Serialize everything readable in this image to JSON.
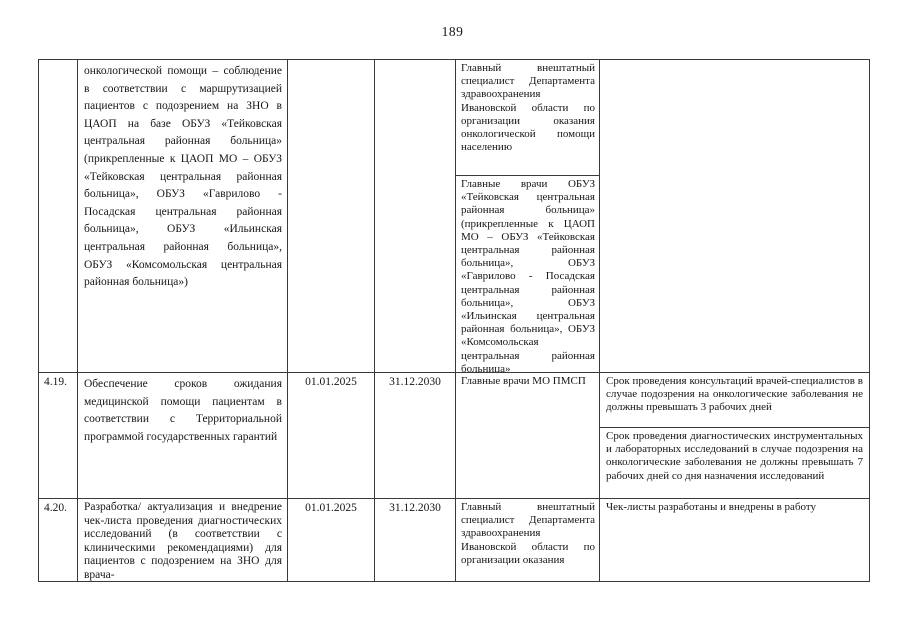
{
  "page": {
    "number": "189"
  },
  "table": {
    "rows": [
      {
        "id": "",
        "activity": "онкологической помощи – соблюдение в соответствии с маршрутизацией пациентов с подозрением на ЗНО в ЦАОП на базе ОБУЗ «Тейковская центральная районная больница» (прикрепленные к ЦАОП МО – ОБУЗ «Тейковская центральная районная больница», ОБУЗ «Гаврилово - Посадская центральная районная больница», ОБУЗ «Ильинская центральная районная больница», ОБУЗ «Комсомольская центральная районная больница»)",
        "date_start": "",
        "date_end": "",
        "responsible": [
          "Главный внештатный специалист Департамента здравоохранения Ивановской области по организации оказания онкологической помощи населению",
          "Главные врачи ОБУЗ «Тейковская центральная районная больница» (прикрепленные к ЦАОП МО – ОБУЗ «Тейковская центральная районная больница», ОБУЗ «Гаврилово - Посадская центральная районная больница», ОБУЗ «Ильинская центральная районная больница», ОБУЗ «Комсомольская центральная районная больница»"
        ],
        "result": []
      },
      {
        "id": "4.19.",
        "activity": "Обеспечение сроков ожидания медицинской помощи пациентам в соответствии с Территориальной программой государственных гарантий",
        "date_start": "01.01.2025",
        "date_end": "31.12.2030",
        "responsible": [
          "Главные врачи МО ПМСП"
        ],
        "result": [
          "Срок проведения консультаций врачей-специалистов в случае подозрения на онкологические заболевания не должны превышать 3 рабочих дней",
          "Срок проведения диагностических инструментальных и лабораторных исследований в случае подозрения на онкологические заболевания не должны превышать 7 рабочих дней со дня назначения исследований"
        ]
      },
      {
        "id": "4.20.",
        "activity": "Разработка/ актуализация и внедрение чек-листа проведения диагностических исследований (в соответствии с клиническими рекомендациями) для пациентов с подозрением на ЗНО для врача-",
        "date_start": "01.01.2025",
        "date_end": "31.12.2030",
        "responsible": [
          "Главный внештатный специалист Департамента здравоохранения Ивановской области по организации оказания"
        ],
        "result": [
          "Чек-листы разработаны и внедрены в работу"
        ]
      }
    ]
  }
}
